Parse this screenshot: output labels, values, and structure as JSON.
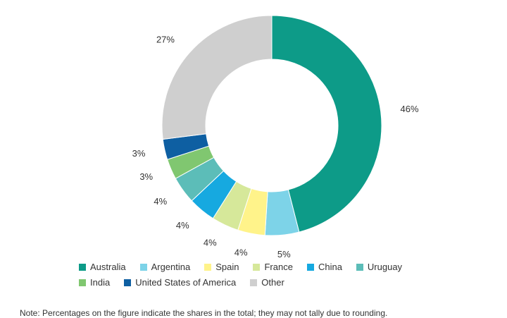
{
  "chart_data": {
    "type": "pie",
    "donut": true,
    "slices": [
      {
        "label": "Australia",
        "value": 46,
        "display": "46%",
        "color": "#0d9b88"
      },
      {
        "label": "Argentina",
        "value": 5,
        "display": "5%",
        "color": "#7dd3e8"
      },
      {
        "label": "Spain",
        "value": 4,
        "display": "4%",
        "color": "#fff38a"
      },
      {
        "label": "France",
        "value": 4,
        "display": "4%",
        "color": "#d6e89a"
      },
      {
        "label": "China",
        "value": 4,
        "display": "4%",
        "color": "#16a9e0"
      },
      {
        "label": "Uruguay",
        "value": 4,
        "display": "4%",
        "color": "#5cbdb8"
      },
      {
        "label": "India",
        "value": 3,
        "display": "3%",
        "color": "#80c770"
      },
      {
        "label": "United States of America",
        "value": 3,
        "display": "3%",
        "color": "#0e5fa2"
      },
      {
        "label": "Other",
        "value": 27,
        "display": "27%",
        "color": "#cfcfcf"
      }
    ],
    "legend_placement": "bottom"
  },
  "legend": {
    "row1": [
      "Australia",
      "Argentina",
      "Spain",
      "France",
      "China",
      "Uruguay"
    ],
    "row2": [
      "India",
      "United States of America",
      "Other"
    ]
  },
  "note": "Note: Percentages on the figure indicate the shares in the total; they may not tally due to rounding."
}
